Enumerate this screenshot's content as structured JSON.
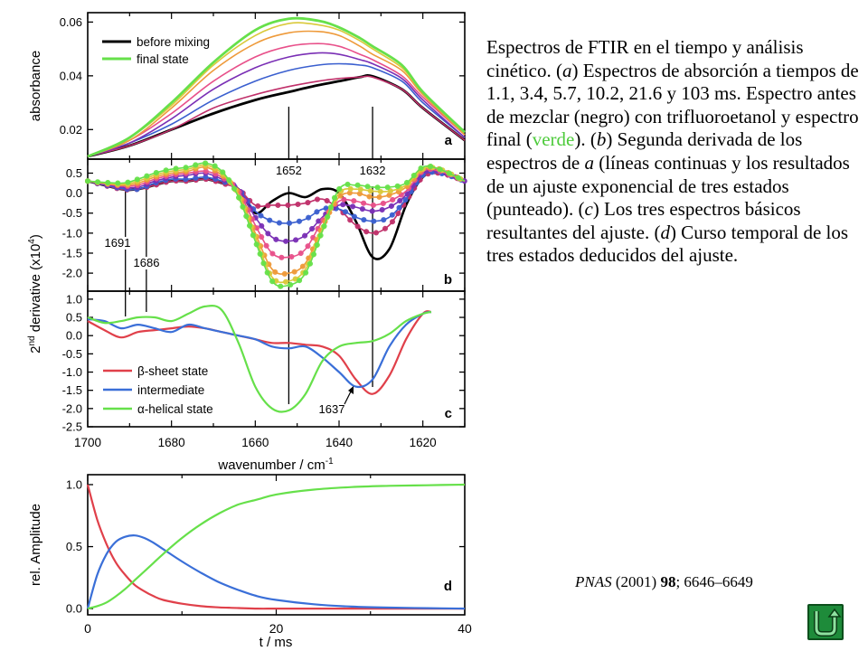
{
  "caption": {
    "s1": "Espectros de FTIR en el tiempo y análisis cinético. (",
    "a": "a",
    "s2": ") Espectros de absorción a tiempos de 1.1, 3.4, 5.7, 10.2, 21.6 y 103 ms. Espectro antes de mezclar (negro) con trifluoroetanol y espectro final (",
    "verde": "verde",
    "s3": "). (",
    "b": "b",
    "s4": ") Segunda derivada de los espectros de ",
    "a2": "a",
    "s5": " (líneas continuas y los resultados de un ajuste exponencial de tres estados (punteado). (",
    "c": "c",
    "s6": ") Los tres espectros básicos resultantes del ajuste. (",
    "d": "d",
    "s7": ") Curso temporal de los tres estados deducidos del ajuste."
  },
  "citation": {
    "journal": "PNAS",
    "year": "(2001)",
    "volume": "98",
    "pages": "; 6646–6649"
  },
  "nav_icon": "u-turn-back-icon",
  "chart_data": [
    {
      "type": "line",
      "panel_label": "a",
      "ylabel": "absorbance",
      "yticks": [
        "0.06",
        "0.04",
        "0.02"
      ],
      "yticks_values": [
        0.06,
        0.04,
        0.02
      ],
      "xlim": [
        1700,
        1610
      ],
      "ylim": [
        0.009,
        0.0635
      ],
      "legend": {
        "placement": "top-left",
        "entries": [
          {
            "label": "before mixing",
            "color": "#000000"
          },
          {
            "label": "final state",
            "color": "#66e04a"
          }
        ]
      },
      "marker_lines": [
        1652,
        1632
      ],
      "x": [
        1700,
        1690,
        1680,
        1670,
        1660,
        1652,
        1645,
        1640,
        1635,
        1632,
        1625,
        1620,
        1610
      ],
      "series": [
        {
          "name": "before mixing",
          "color": "#000000",
          "values": [
            0.01,
            0.014,
            0.02,
            0.026,
            0.031,
            0.034,
            0.0365,
            0.038,
            0.0395,
            0.0398,
            0.035,
            0.028,
            0.016
          ]
        },
        {
          "color": "#c0306a",
          "values": [
            0.01,
            0.014,
            0.02,
            0.028,
            0.033,
            0.036,
            0.038,
            0.039,
            0.0395,
            0.0395,
            0.035,
            0.028,
            0.016
          ]
        },
        {
          "color": "#3a5fcf",
          "values": [
            0.01,
            0.015,
            0.022,
            0.031,
            0.038,
            0.042,
            0.044,
            0.0445,
            0.044,
            0.043,
            0.038,
            0.03,
            0.017
          ]
        },
        {
          "color": "#7a2fb5",
          "values": [
            0.01,
            0.015,
            0.024,
            0.035,
            0.043,
            0.047,
            0.0485,
            0.048,
            0.046,
            0.0445,
            0.039,
            0.031,
            0.017
          ]
        },
        {
          "color": "#e8508a",
          "values": [
            0.01,
            0.016,
            0.026,
            0.038,
            0.047,
            0.051,
            0.052,
            0.051,
            0.048,
            0.046,
            0.04,
            0.032,
            0.018
          ]
        },
        {
          "color": "#ee9a3a",
          "values": [
            0.01,
            0.016,
            0.028,
            0.042,
            0.052,
            0.056,
            0.0565,
            0.055,
            0.051,
            0.048,
            0.042,
            0.033,
            0.018
          ]
        },
        {
          "color": "#d9c93a",
          "values": [
            0.01,
            0.017,
            0.029,
            0.044,
            0.055,
            0.0595,
            0.059,
            0.057,
            0.053,
            0.05,
            0.043,
            0.034,
            0.019
          ]
        },
        {
          "name": "final state",
          "color": "#66e04a",
          "values": [
            0.01,
            0.017,
            0.03,
            0.045,
            0.057,
            0.0612,
            0.0605,
            0.058,
            0.054,
            0.051,
            0.044,
            0.034,
            0.019
          ]
        }
      ]
    },
    {
      "type": "line",
      "panel_label": "b",
      "ylabel": "2nd derivative (x10⁴)",
      "yticks": [
        "0.5",
        "0.0",
        "-0.5",
        "-1.0",
        "-1.5",
        "-2.0"
      ],
      "yticks_values": [
        0.5,
        0.0,
        -0.5,
        -1.0,
        -1.5,
        -2.0
      ],
      "xlim": [
        1700,
        1610
      ],
      "ylim": [
        -2.45,
        0.85
      ],
      "annotations": [
        {
          "text": "1652",
          "x": 1652
        },
        {
          "text": "1632",
          "x": 1632
        },
        {
          "text": "1691",
          "x": 1691
        },
        {
          "text": "1686",
          "x": 1686
        }
      ],
      "fit_style": "dotted",
      "x": [
        1700,
        1692,
        1688,
        1684,
        1680,
        1676,
        1672,
        1668,
        1664,
        1660,
        1656,
        1652,
        1648,
        1644,
        1640,
        1636,
        1632,
        1628,
        1624,
        1620,
        1616,
        1610
      ],
      "series": [
        {
          "name": "before mixing",
          "color": "#000000",
          "values": [
            0.3,
            0.1,
            0.1,
            0.2,
            0.3,
            0.3,
            0.35,
            0.25,
            0.1,
            -0.5,
            -0.2,
            0.0,
            -0.1,
            0.1,
            0.0,
            -0.7,
            -1.6,
            -1.4,
            -0.3,
            0.4,
            0.5,
            0.3
          ]
        },
        {
          "color": "#c0306a",
          "values": [
            0.3,
            0.1,
            0.1,
            0.2,
            0.3,
            0.3,
            0.35,
            0.25,
            0.1,
            -0.3,
            -0.3,
            -0.3,
            -0.25,
            -0.15,
            -0.4,
            -0.8,
            -1.0,
            -0.8,
            -0.2,
            0.4,
            0.5,
            0.3
          ]
        },
        {
          "color": "#3a5fcf",
          "values": [
            0.3,
            0.12,
            0.1,
            0.25,
            0.35,
            0.35,
            0.4,
            0.3,
            0.1,
            -0.45,
            -0.7,
            -0.75,
            -0.65,
            -0.4,
            -0.4,
            -0.6,
            -0.7,
            -0.6,
            -0.15,
            0.45,
            0.5,
            0.3
          ]
        },
        {
          "color": "#7a2fb5",
          "values": [
            0.3,
            0.15,
            0.15,
            0.3,
            0.4,
            0.45,
            0.5,
            0.35,
            0.1,
            -0.6,
            -1.1,
            -1.2,
            -1.05,
            -0.6,
            -0.3,
            -0.35,
            -0.45,
            -0.35,
            -0.05,
            0.5,
            0.55,
            0.3
          ]
        },
        {
          "color": "#e8508a",
          "values": [
            0.3,
            0.18,
            0.2,
            0.35,
            0.45,
            0.5,
            0.55,
            0.4,
            0.05,
            -0.8,
            -1.5,
            -1.6,
            -1.4,
            -0.7,
            -0.2,
            -0.2,
            -0.3,
            -0.2,
            0.05,
            0.55,
            0.55,
            0.3
          ]
        },
        {
          "color": "#ee9a3a",
          "values": [
            0.3,
            0.2,
            0.25,
            0.4,
            0.5,
            0.55,
            0.65,
            0.45,
            0.0,
            -1.0,
            -1.9,
            -2.0,
            -1.75,
            -0.85,
            -0.1,
            0.0,
            -0.1,
            -0.05,
            0.15,
            0.6,
            0.6,
            0.3
          ]
        },
        {
          "color": "#d9c93a",
          "values": [
            0.3,
            0.22,
            0.3,
            0.45,
            0.55,
            0.6,
            0.7,
            0.5,
            -0.05,
            -1.1,
            -2.1,
            -2.2,
            -1.9,
            -0.9,
            0.0,
            0.1,
            0.05,
            0.05,
            0.2,
            0.6,
            0.6,
            0.3
          ]
        },
        {
          "name": "final state",
          "color": "#66e04a",
          "values": [
            0.3,
            0.25,
            0.35,
            0.5,
            0.6,
            0.65,
            0.75,
            0.55,
            -0.1,
            -1.2,
            -2.2,
            -2.3,
            -2.0,
            -0.95,
            0.1,
            0.2,
            0.15,
            0.15,
            0.25,
            0.65,
            0.6,
            0.3
          ]
        }
      ]
    },
    {
      "type": "line",
      "panel_label": "c",
      "ylabel": "2nd derivative (x10⁴)",
      "yticks": [
        "1.0",
        "0.5",
        "0.0",
        "-0.5",
        "-1.0",
        "-1.5",
        "-2.0",
        "-2.5"
      ],
      "yticks_values": [
        1.0,
        0.5,
        0.0,
        -0.5,
        -1.0,
        -1.5,
        -2.0,
        -2.5
      ],
      "xlim": [
        1700,
        1610
      ],
      "ylim": [
        -2.5,
        1.22
      ],
      "xticks": [
        "1700",
        "1680",
        "1660",
        "1640",
        "1620"
      ],
      "xticks_values": [
        1700,
        1680,
        1660,
        1640,
        1620
      ],
      "xlabel": "wavenumber / cm-1",
      "legend": {
        "placement": "bottom-left",
        "entries": [
          {
            "label": "β-sheet state",
            "color": "#e0404a"
          },
          {
            "label": "intermediate",
            "color": "#3a6fd8"
          },
          {
            "label": "α-helical state",
            "color": "#66e04a"
          }
        ]
      },
      "annotations": [
        {
          "text": "1637",
          "x": 1637
        }
      ],
      "series": [
        {
          "name": "β-sheet state",
          "color": "#e0404a",
          "x": [
            1700,
            1696,
            1692,
            1688,
            1684,
            1680,
            1676,
            1672,
            1668,
            1664,
            1660,
            1656,
            1652,
            1648,
            1644,
            1640,
            1636,
            1632,
            1628,
            1624,
            1620,
            1618
          ],
          "values": [
            0.4,
            0.15,
            -0.05,
            0.1,
            0.15,
            0.2,
            0.25,
            0.2,
            0.1,
            0.0,
            -0.1,
            -0.2,
            -0.2,
            -0.25,
            -0.3,
            -0.55,
            -1.2,
            -1.6,
            -1.1,
            -0.1,
            0.6,
            0.65
          ]
        },
        {
          "name": "intermediate",
          "color": "#3a6fd8",
          "x": [
            1700,
            1696,
            1692,
            1688,
            1684,
            1680,
            1676,
            1672,
            1668,
            1664,
            1660,
            1656,
            1652,
            1648,
            1644,
            1640,
            1636,
            1632,
            1628,
            1624,
            1620,
            1618
          ],
          "values": [
            0.45,
            0.4,
            0.2,
            0.3,
            0.2,
            0.1,
            0.3,
            0.2,
            0.1,
            0.0,
            -0.1,
            -0.3,
            -0.35,
            -0.3,
            -0.6,
            -1.0,
            -1.4,
            -1.2,
            -0.3,
            0.3,
            0.6,
            0.65
          ]
        },
        {
          "name": "α-helical state",
          "color": "#66e04a",
          "x": [
            1700,
            1696,
            1692,
            1688,
            1684,
            1680,
            1676,
            1672,
            1668,
            1664,
            1660,
            1656,
            1652,
            1648,
            1644,
            1640,
            1636,
            1632,
            1628,
            1624,
            1620,
            1618
          ],
          "values": [
            0.5,
            0.35,
            0.4,
            0.5,
            0.5,
            0.4,
            0.6,
            0.8,
            0.7,
            -0.2,
            -1.4,
            -2.0,
            -2.05,
            -1.6,
            -0.7,
            -0.3,
            -0.2,
            -0.15,
            0.05,
            0.4,
            0.6,
            0.65
          ]
        }
      ],
      "marker_lines": [
        1691,
        1686,
        1652,
        1632
      ]
    },
    {
      "type": "line",
      "panel_label": "d",
      "ylabel": "rel. Amplitude",
      "xlabel": "t / ms",
      "xlim": [
        0,
        40
      ],
      "ylim": [
        -0.05,
        1.08
      ],
      "xticks": [
        "0",
        "20",
        "40"
      ],
      "xticks_values": [
        0,
        20,
        40
      ],
      "yticks": [
        "1.0",
        "0.5",
        "0.0"
      ],
      "yticks_values": [
        1.0,
        0.5,
        0.0
      ],
      "x": [
        0,
        1,
        2,
        3,
        4,
        5,
        6,
        7,
        8,
        10,
        12,
        14,
        16,
        18,
        20,
        24,
        28,
        32,
        36,
        40
      ],
      "series": [
        {
          "name": "β-sheet state",
          "color": "#e0404a",
          "values": [
            1.0,
            0.72,
            0.52,
            0.37,
            0.27,
            0.19,
            0.14,
            0.1,
            0.07,
            0.04,
            0.02,
            0.01,
            0.005,
            0.0,
            0.0,
            0.0,
            0.0,
            0.0,
            0.0,
            0.0
          ]
        },
        {
          "name": "intermediate",
          "color": "#3a6fd8",
          "values": [
            0.0,
            0.27,
            0.44,
            0.54,
            0.58,
            0.59,
            0.57,
            0.53,
            0.48,
            0.38,
            0.29,
            0.21,
            0.15,
            0.1,
            0.07,
            0.035,
            0.016,
            0.008,
            0.004,
            0.0
          ]
        },
        {
          "name": "α-helical state",
          "color": "#66e04a",
          "values": [
            0.0,
            0.02,
            0.05,
            0.1,
            0.16,
            0.23,
            0.3,
            0.37,
            0.44,
            0.57,
            0.68,
            0.77,
            0.84,
            0.88,
            0.92,
            0.96,
            0.98,
            0.99,
            0.995,
            1.0
          ]
        }
      ]
    }
  ]
}
